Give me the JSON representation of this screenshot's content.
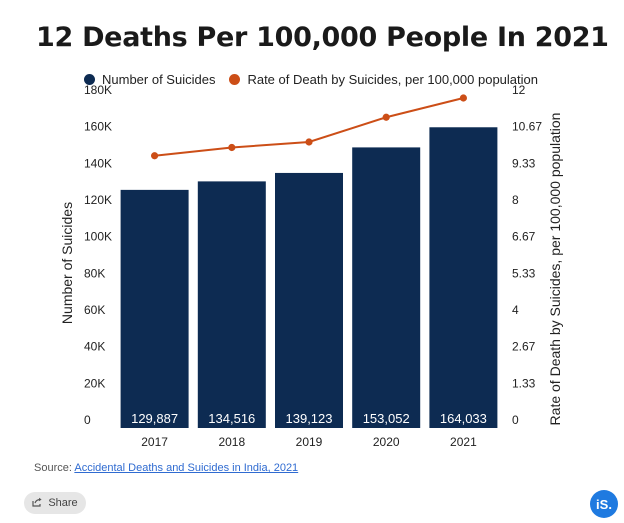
{
  "title": "12 Deaths Per 100,000 People In 2021",
  "legend": {
    "bars": "Number of Suicides",
    "line": "Rate of Death by Suicides, per 100,000 population"
  },
  "colors": {
    "bars": "#0d2b52",
    "line": "#cc4e17",
    "bar_label": "#ffffff"
  },
  "source": {
    "prefix": "Source: ",
    "link_text": "Accidental Deaths and Suicides in India, 2021"
  },
  "share": {
    "label": "Share",
    "icon": "share-icon"
  },
  "logo": {
    "text": "iS."
  },
  "chart_data": {
    "type": "bar",
    "categories": [
      "2017",
      "2018",
      "2019",
      "2020",
      "2021"
    ],
    "series": [
      {
        "name": "Number of Suicides",
        "type": "bar",
        "axis": "left",
        "values": [
          129887,
          134516,
          139123,
          153052,
          164033
        ],
        "value_labels": [
          "129,887",
          "134,516",
          "139,123",
          "153,052",
          "164,033"
        ]
      },
      {
        "name": "Rate of Death by Suicides, per 100,000 population",
        "type": "line",
        "axis": "right",
        "values": [
          9.9,
          10.2,
          10.4,
          11.3,
          12.0
        ]
      }
    ],
    "ylabel": "Number of Suicides",
    "y2label": "Rate of Death by Suicides, per 100,000 population",
    "ylim": [
      0,
      180000
    ],
    "y2lim": [
      0,
      12
    ],
    "yticks": [
      "0",
      "20K",
      "40K",
      "60K",
      "80K",
      "100K",
      "120K",
      "140K",
      "160K",
      "180K"
    ],
    "y2ticks": [
      "0",
      "1.33",
      "2.67",
      "4",
      "5.33",
      "6.67",
      "8",
      "9.33",
      "10.67",
      "12"
    ],
    "legend_position": "top",
    "grid": false
  }
}
